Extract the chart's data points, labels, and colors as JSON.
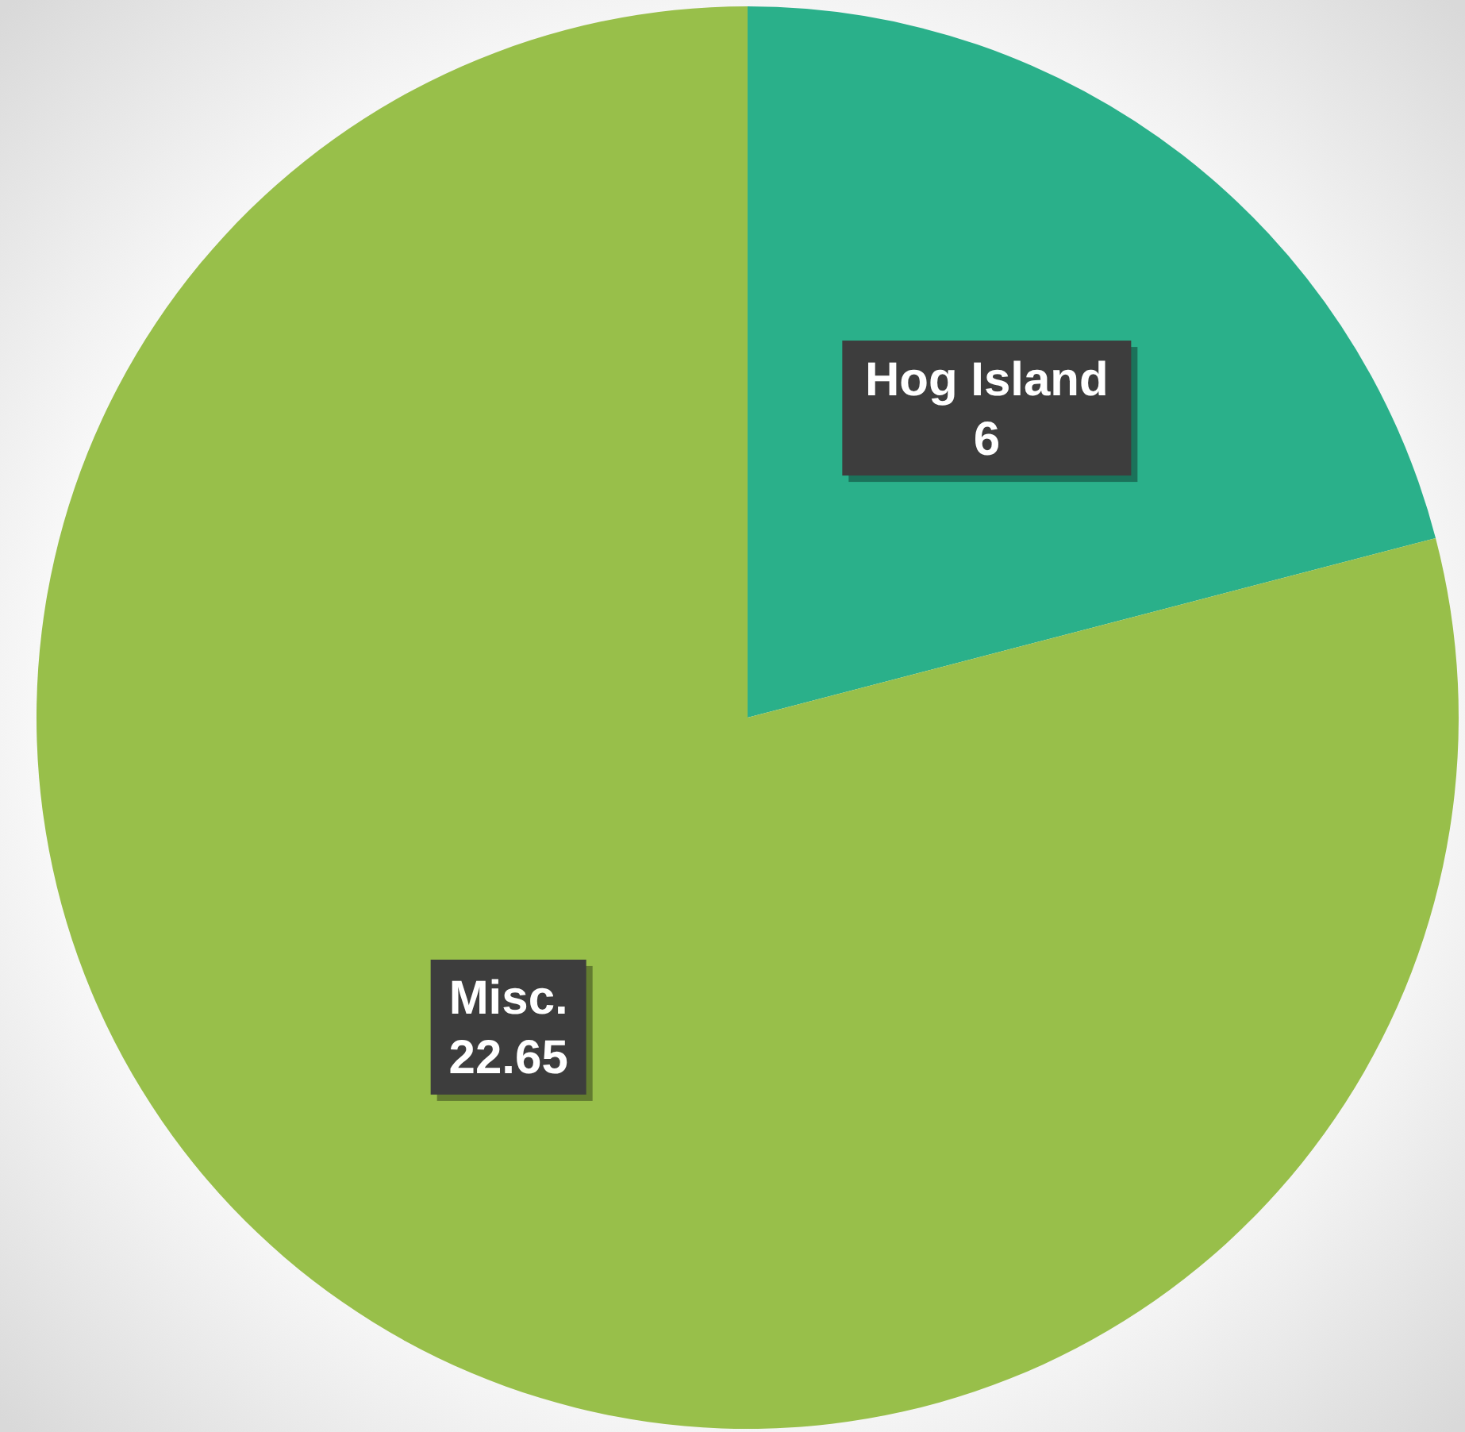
{
  "chart_data": {
    "type": "pie",
    "categories": [
      "Hog Island",
      "Misc."
    ],
    "values": [
      6,
      22.65
    ],
    "colors": [
      "#2ab08a",
      "#98bf4a"
    ],
    "data_labels": true
  }
}
